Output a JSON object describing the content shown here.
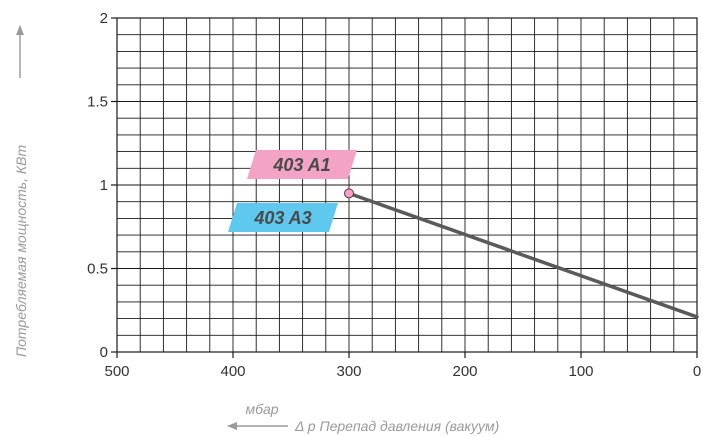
{
  "chart_data": {
    "type": "line",
    "title": "",
    "xlabel": "Δ p Перепад давления (вакуум)",
    "xunit": "мбар",
    "ylabel": "Потребляемая мощность, КВт",
    "xlim": [
      500,
      0
    ],
    "ylim": [
      0,
      2
    ],
    "x_reversed": true,
    "grid": true,
    "x_ticks": [
      {
        "value": 500,
        "label": "500"
      },
      {
        "value": 400,
        "label": "400"
      },
      {
        "value": 300,
        "label": "300"
      },
      {
        "value": 200,
        "label": "200"
      },
      {
        "value": 100,
        "label": "100"
      },
      {
        "value": 0,
        "label": "0"
      }
    ],
    "y_ticks": [
      {
        "value": 0,
        "label": "0"
      },
      {
        "value": 0.5,
        "label": "0.5"
      },
      {
        "value": 1,
        "label": "1"
      },
      {
        "value": 1.5,
        "label": "1.5"
      },
      {
        "value": 2,
        "label": "2"
      }
    ],
    "series_tags": [
      {
        "label": "403 A1",
        "color": "#f2a3c6"
      },
      {
        "label": "403 A3",
        "color": "#5ec8ef"
      }
    ],
    "series": [
      {
        "name": "",
        "color": "#5a5a5a",
        "x": [
          300,
          0
        ],
        "y": [
          0.95,
          0.21
        ],
        "marker": {
          "x": 300,
          "y": 0.95,
          "color": "#f2a3c6"
        }
      }
    ]
  }
}
